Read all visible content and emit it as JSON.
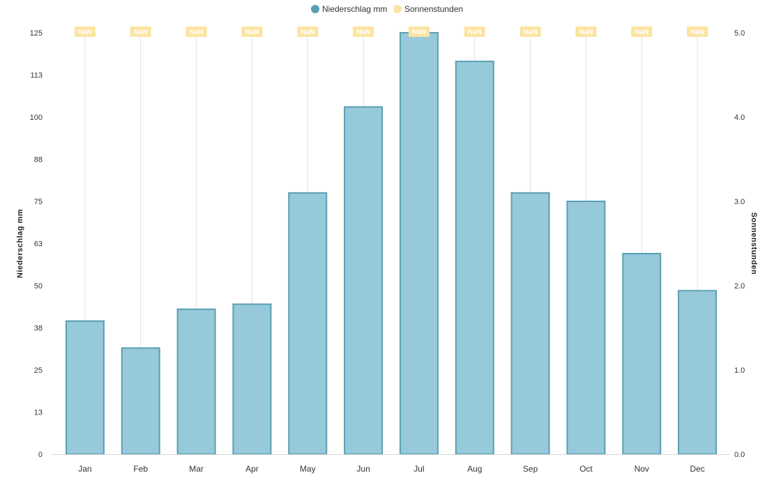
{
  "chart_data": {
    "type": "bar",
    "categories": [
      "Jan",
      "Feb",
      "Mar",
      "Apr",
      "May",
      "Jun",
      "Jul",
      "Aug",
      "Sep",
      "Oct",
      "Nov",
      "Dec"
    ],
    "series": [
      {
        "name": "Niederschlag mm",
        "type": "bar",
        "axis": "left",
        "color": "#96c9da",
        "border_color": "#5a9fb3",
        "values": [
          39.5,
          31.5,
          43,
          44.5,
          77.5,
          103,
          125,
          116.5,
          77.5,
          75,
          59.5,
          48.5
        ]
      },
      {
        "name": "Sonnenstunden",
        "type": "line",
        "axis": "right",
        "color": "#fbe4a2",
        "values": [
          null,
          null,
          null,
          null,
          null,
          null,
          null,
          null,
          null,
          null,
          null,
          null
        ],
        "point_labels": [
          "NaN",
          "NaN",
          "NaN",
          "NaN",
          "NaN",
          "NaN",
          "NaN",
          "NaN",
          "NaN",
          "NaN",
          "NaN",
          "NaN"
        ]
      }
    ],
    "y_left": {
      "label": "Niederschlag mm",
      "range": [
        0,
        125
      ],
      "tick_values": [
        0,
        12.5,
        25,
        37.5,
        50,
        62.5,
        75,
        87.5,
        100,
        112.5,
        125
      ],
      "tick_labels": [
        "0",
        "13",
        "25",
        "38",
        "50",
        "63",
        "75",
        "88",
        "100",
        "113",
        "125"
      ]
    },
    "y_right": {
      "label": "Sonnenstunden",
      "range": [
        0,
        5
      ],
      "tick_values": [
        0,
        1,
        2,
        3,
        4,
        5
      ],
      "tick_labels": [
        "0.0",
        "1.0",
        "2.0",
        "3.0",
        "4.0",
        "5.0"
      ]
    },
    "title": "",
    "xlabel": "",
    "grid": {
      "vertical": true,
      "horizontal": false
    },
    "legend": {
      "position": "top-center"
    }
  }
}
